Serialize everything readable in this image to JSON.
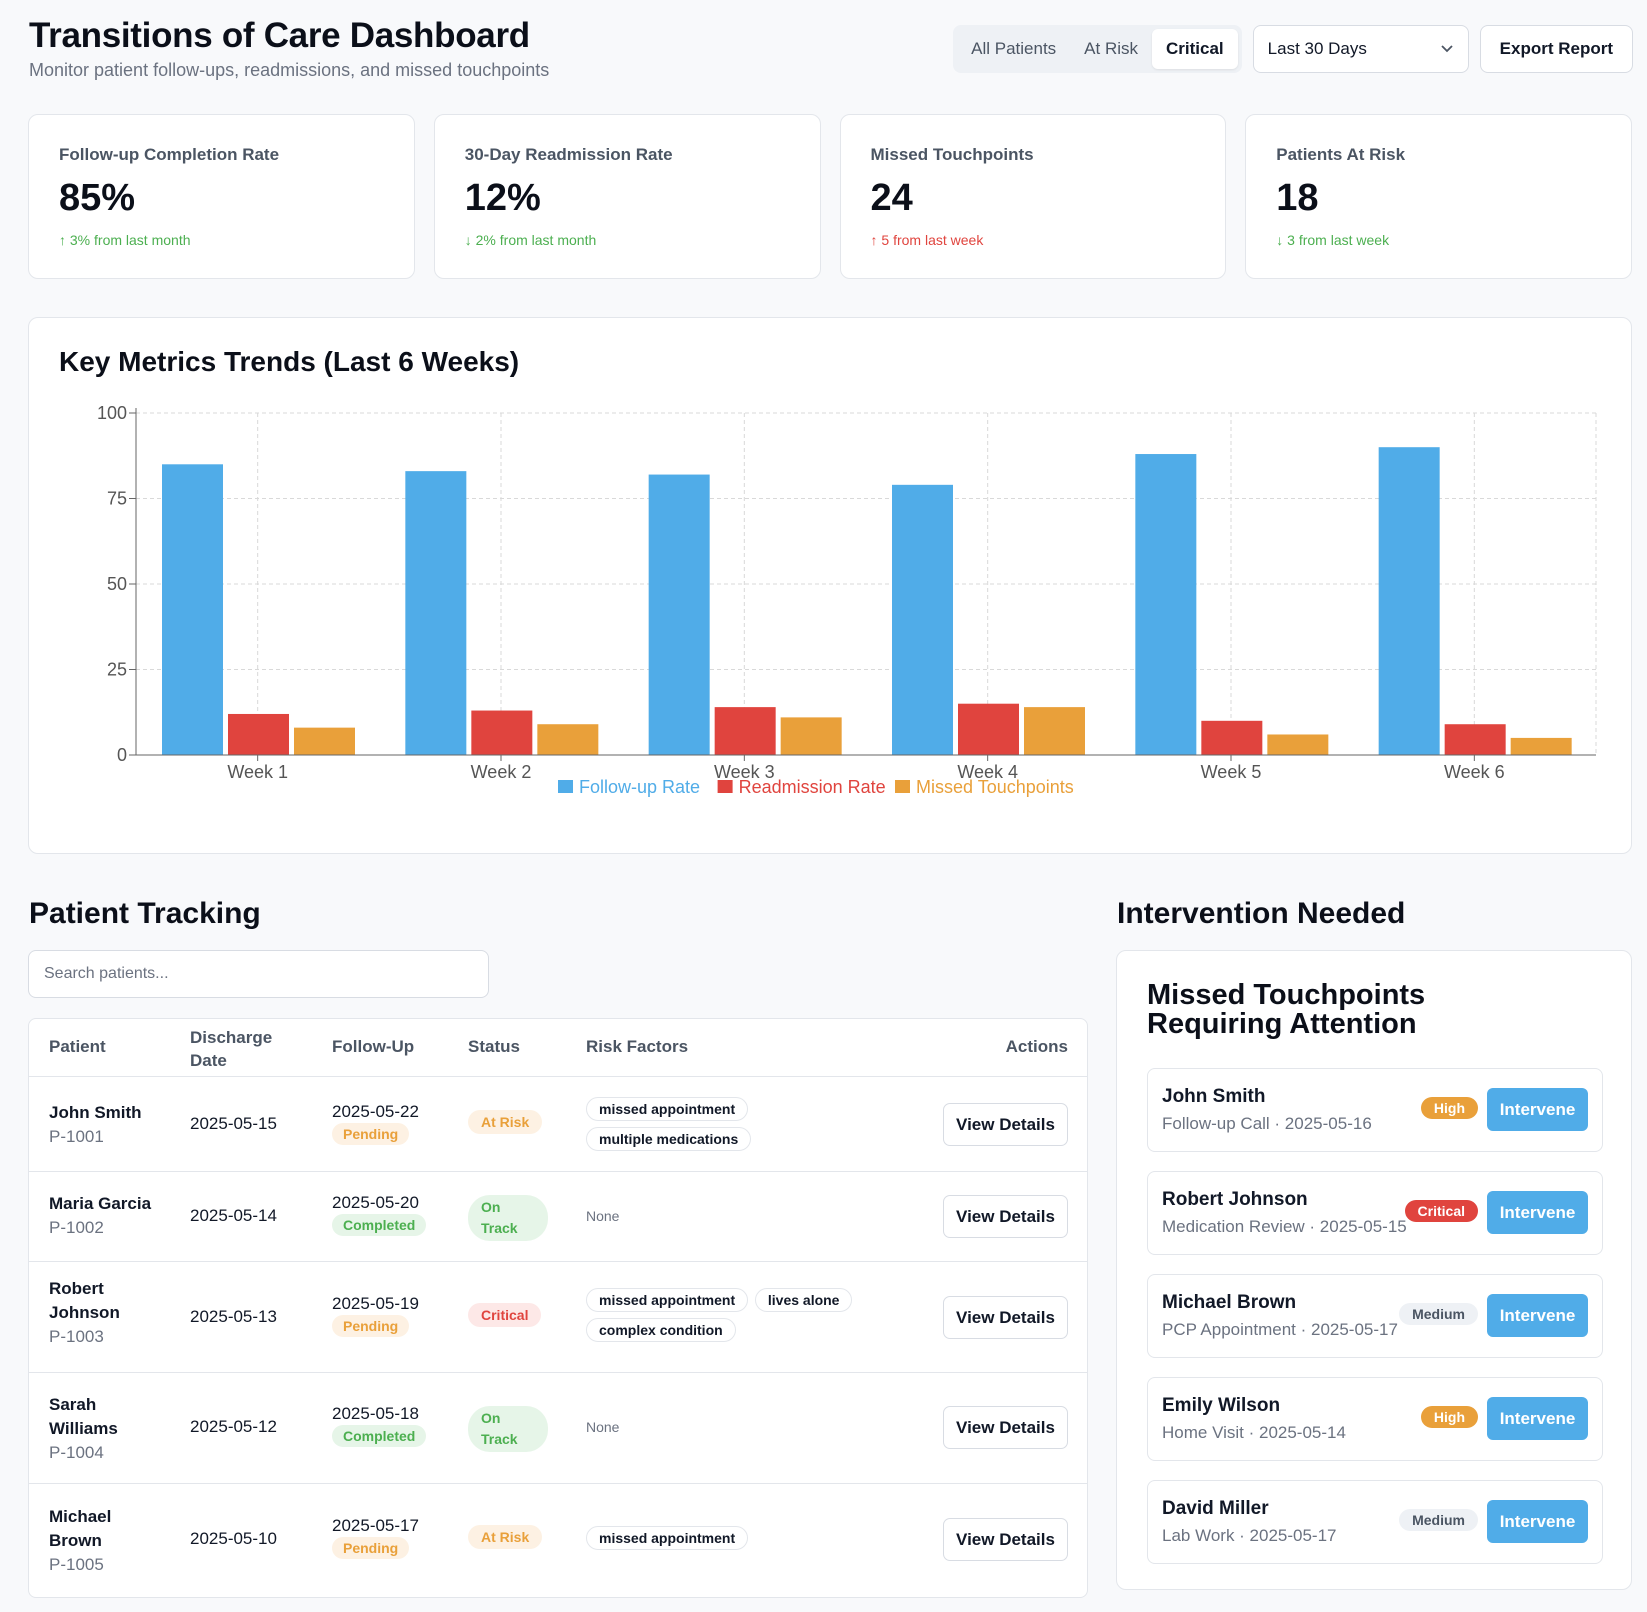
{
  "header": {
    "title": "Transitions of Care Dashboard",
    "subtitle": "Monitor patient follow-ups, readmissions, and missed touchpoints",
    "segments": [
      "All Patients",
      "At Risk",
      "Critical"
    ],
    "active_segment": "Critical",
    "period": "Last 30 Days",
    "export_label": "Export Report"
  },
  "kpis": [
    {
      "label": "Follow-up Completion Rate",
      "value": "85%",
      "delta": "↑ 3% from last month",
      "tone": "up-good"
    },
    {
      "label": "30-Day Readmission Rate",
      "value": "12%",
      "delta": "↓ 2% from last month",
      "tone": "down-good"
    },
    {
      "label": "Missed Touchpoints",
      "value": "24",
      "delta": "↑ 5 from last week",
      "tone": "up-bad"
    },
    {
      "label": "Patients At Risk",
      "value": "18",
      "delta": "↓ 3 from last week",
      "tone": "down-good"
    }
  ],
  "chart_data": {
    "type": "bar",
    "title": "Key Metrics Trends (Last 6 Weeks)",
    "categories": [
      "Week 1",
      "Week 2",
      "Week 3",
      "Week 4",
      "Week 5",
      "Week 6"
    ],
    "series": [
      {
        "name": "Follow-up Rate",
        "color": "#50ace8",
        "values": [
          85,
          83,
          82,
          79,
          88,
          90
        ]
      },
      {
        "name": "Readmission Rate",
        "color": "#e0443e",
        "values": [
          12,
          13,
          14,
          15,
          10,
          9
        ]
      },
      {
        "name": "Missed Touchpoints",
        "color": "#e9a03a",
        "values": [
          8,
          9,
          11,
          14,
          6,
          5
        ]
      }
    ],
    "yticks": [
      0,
      25,
      50,
      75,
      100
    ],
    "ylim": [
      0,
      100
    ],
    "grid": true,
    "legend": "bottom-center"
  },
  "tracking": {
    "title": "Patient Tracking",
    "search_placeholder": "Search patients...",
    "columns": {
      "patient": "Patient",
      "discharge": "Discharge\nDate",
      "followup": "Follow-Up",
      "status": "Status",
      "risk": "Risk Factors",
      "actions": "Actions"
    },
    "view_label": "View Details",
    "rows": [
      {
        "name": "John Smith",
        "id": "P-1001",
        "discharge": "2025-05-15",
        "follow_date": "2025-05-22",
        "follow_status": "Pending",
        "status": "At Risk",
        "risks": [
          "missed appointment",
          "multiple medications"
        ]
      },
      {
        "name": "Maria Garcia",
        "id": "P-1002",
        "discharge": "2025-05-14",
        "follow_date": "2025-05-20",
        "follow_status": "Completed",
        "status": "On Track",
        "risks": [],
        "none_label": "None"
      },
      {
        "name": "Robert Johnson",
        "id": "P-1003",
        "discharge": "2025-05-13",
        "follow_date": "2025-05-19",
        "follow_status": "Pending",
        "status": "Critical",
        "risks": [
          "missed appointment",
          "lives alone",
          "complex condition"
        ]
      },
      {
        "name": "Sarah Williams",
        "id": "P-1004",
        "discharge": "2025-05-12",
        "follow_date": "2025-05-18",
        "follow_status": "Completed",
        "status": "On Track",
        "risks": [],
        "none_label": "None"
      },
      {
        "name": "Michael Brown",
        "id": "P-1005",
        "discharge": "2025-05-10",
        "follow_date": "2025-05-17",
        "follow_status": "Pending",
        "status": "At Risk",
        "risks": [
          "missed appointment"
        ]
      }
    ]
  },
  "intervention": {
    "title": "Intervention Needed",
    "subtitle": "Missed Touchpoints Requiring Attention",
    "button_label": "Intervene",
    "items": [
      {
        "name": "John Smith",
        "meta": "Follow-up Call · 2025-05-16",
        "priority": "High"
      },
      {
        "name": "Robert Johnson",
        "meta": "Medication Review · 2025-05-15",
        "priority": "Critical"
      },
      {
        "name": "Michael Brown",
        "meta": "PCP Appointment · 2025-05-17",
        "priority": "Medium"
      },
      {
        "name": "Emily Wilson",
        "meta": "Home Visit · 2025-05-14",
        "priority": "High"
      },
      {
        "name": "David Miller",
        "meta": "Lab Work · 2025-05-17",
        "priority": "Medium"
      }
    ]
  }
}
